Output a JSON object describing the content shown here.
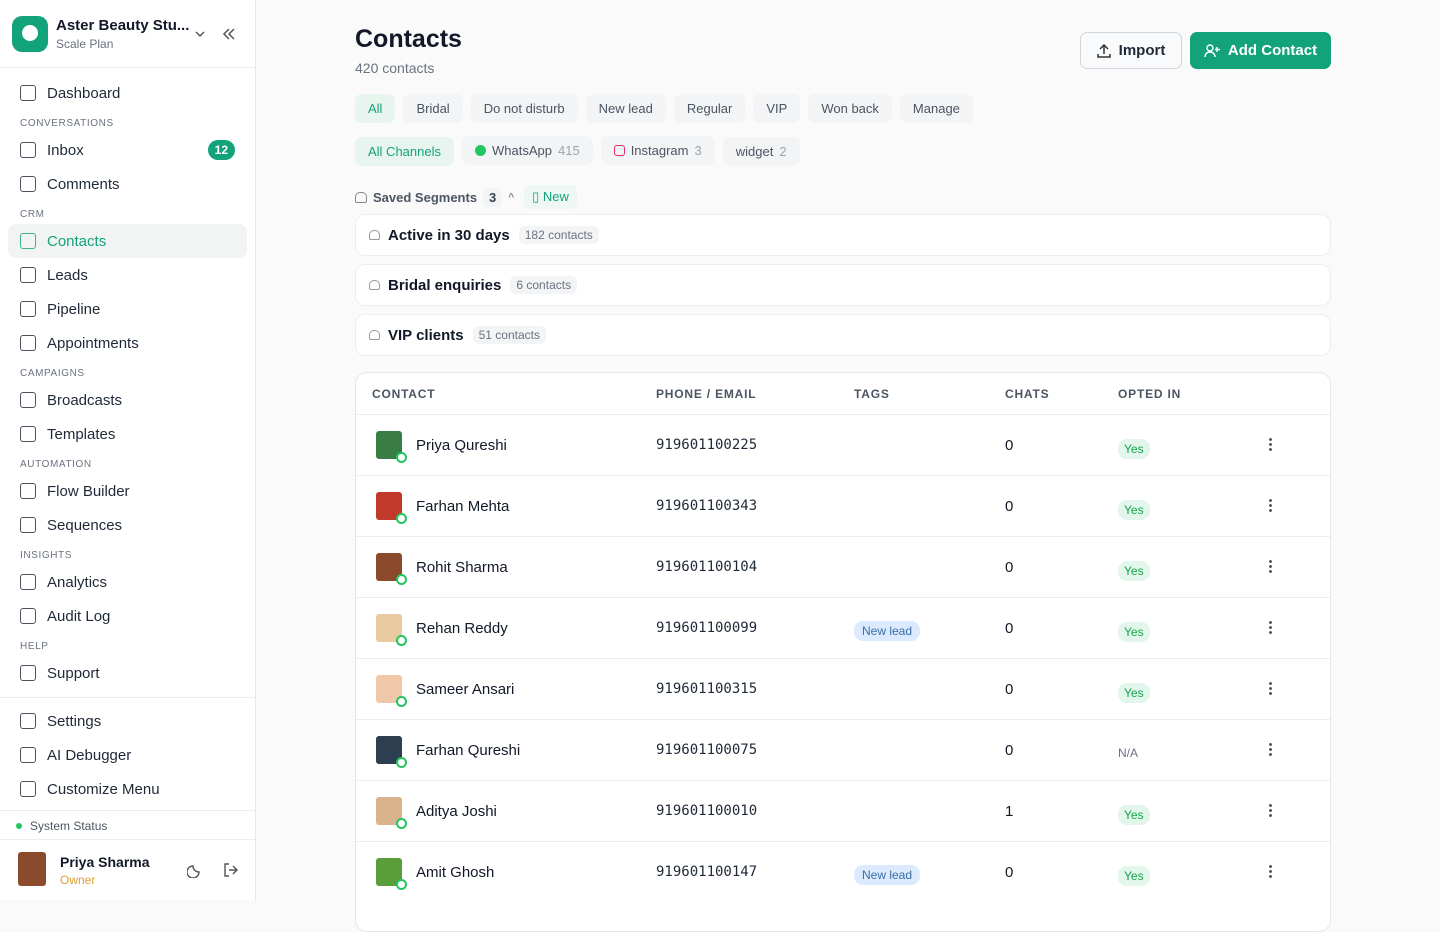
{
  "sidebar": {
    "workspace": {
      "name": "Aster Beauty Stu...",
      "plan": "Scale Plan"
    },
    "nav_top": [
      {
        "label": "Dashboard"
      }
    ],
    "nav_sections": [
      {
        "heading": "CONVERSATIONS",
        "items": [
          {
            "label": "Inbox",
            "badge": "12"
          },
          {
            "label": "Comments"
          }
        ]
      },
      {
        "heading": "CRM",
        "items": [
          {
            "label": "Contacts",
            "active": true
          },
          {
            "label": "Leads"
          },
          {
            "label": "Pipeline"
          },
          {
            "label": "Appointments"
          }
        ]
      },
      {
        "heading": "CAMPAIGNS",
        "items": [
          {
            "label": "Broadcasts"
          },
          {
            "label": "Templates"
          }
        ]
      },
      {
        "heading": "AUTOMATION",
        "items": [
          {
            "label": "Flow Builder"
          },
          {
            "label": "Sequences"
          }
        ]
      },
      {
        "heading": "INSIGHTS",
        "items": [
          {
            "label": "Analytics"
          },
          {
            "label": "Audit Log"
          }
        ]
      },
      {
        "heading": "HELP",
        "items": [
          {
            "label": "Support"
          }
        ]
      }
    ],
    "nav_bottom": [
      {
        "label": "Settings"
      },
      {
        "label": "AI Debugger"
      },
      {
        "label": "Customize Menu"
      }
    ],
    "system_status": "System Status",
    "user": {
      "name": "Priya Sharma",
      "role": "Owner"
    }
  },
  "header": {
    "title": "Contacts",
    "subtitle": "420 contacts",
    "buttons": {
      "import": "Import",
      "add": "Add Contact"
    }
  },
  "tag_filters": [
    {
      "label": "All",
      "active": true
    },
    {
      "label": "Bridal"
    },
    {
      "label": "Do not disturb"
    },
    {
      "label": "New lead"
    },
    {
      "label": "Regular"
    },
    {
      "label": "VIP"
    },
    {
      "label": "Won back"
    },
    {
      "label": "Manage"
    }
  ],
  "channel_filters": [
    {
      "label": "All Channels",
      "active": true
    },
    {
      "label": "WhatsApp",
      "count": "415"
    },
    {
      "label": "Instagram",
      "count": "3"
    },
    {
      "label": "widget",
      "count": "2"
    }
  ],
  "segments": {
    "label": "Saved Segments",
    "count": "3",
    "new": "New",
    "items": [
      {
        "name": "Active in 30 days",
        "count": "182 contacts"
      },
      {
        "name": "Bridal enquiries",
        "count": "6 contacts"
      },
      {
        "name": "VIP clients",
        "count": "51 contacts"
      }
    ]
  },
  "table": {
    "columns": [
      "CONTACT",
      "PHONE / EMAIL",
      "TAGS",
      "CHATS",
      "OPTED IN"
    ],
    "rows": [
      {
        "name": "Priya Qureshi",
        "phone": "919601100225",
        "chats": "0",
        "opted_in": "Yes"
      },
      {
        "name": "Farhan Mehta",
        "phone": "919601100343",
        "chats": "0",
        "opted_in": "Yes"
      },
      {
        "name": "Rohit Sharma",
        "phone": "919601100104",
        "chats": "0",
        "opted_in": "Yes"
      },
      {
        "name": "Rehan Reddy",
        "phone": "919601100099",
        "tag": "New lead",
        "chats": "0",
        "opted_in": "Yes"
      },
      {
        "name": "Sameer Ansari",
        "phone": "919601100315",
        "chats": "0",
        "opted_in": "Yes"
      },
      {
        "name": "Farhan Qureshi",
        "phone": "919601100075",
        "chats": "0",
        "opted_in": "N/A"
      },
      {
        "name": "Aditya Joshi",
        "phone": "919601100010",
        "chats": "1",
        "opted_in": "Yes"
      },
      {
        "name": "Amit Ghosh",
        "phone": "919601100147",
        "tag": "New lead",
        "chats": "0",
        "opted_in": "Yes"
      }
    ]
  }
}
